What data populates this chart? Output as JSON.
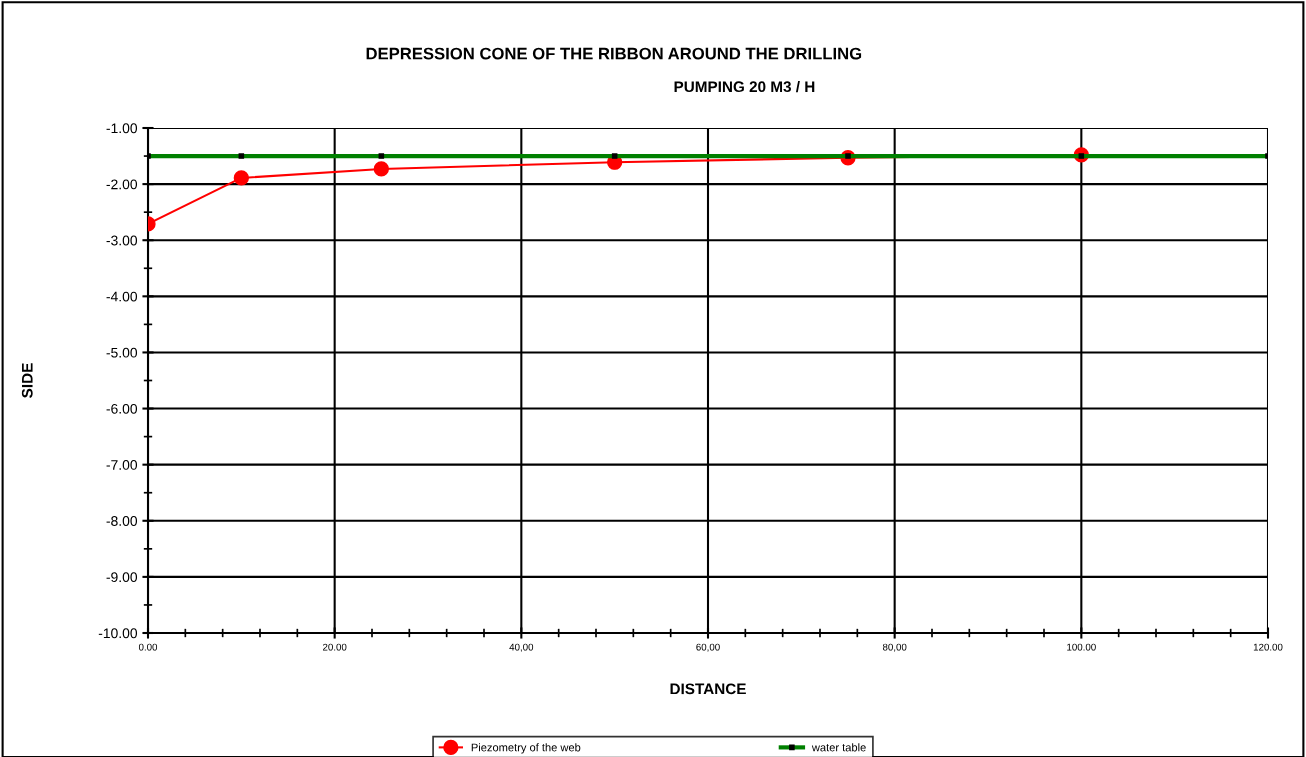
{
  "chart_data": {
    "type": "line",
    "title": "DEPRESSION CONE OF THE RIBBON AROUND THE DRILLING",
    "subtitle": "PUMPING 20 M3 / H",
    "xlabel": "DISTANCE",
    "ylabel": "SIDE",
    "series": [
      {
        "name": "Piezometry of the web",
        "color": "#ff0000",
        "marker": "circle",
        "x": [
          0,
          10,
          25,
          50,
          75,
          100
        ],
        "values": [
          -2.71,
          -1.89,
          -1.73,
          -1.61,
          -1.53,
          -1.48
        ]
      },
      {
        "name": "water table",
        "color": "#008000",
        "marker": "square",
        "x": [
          0,
          10,
          25,
          50,
          75,
          100,
          120
        ],
        "values": [
          -1.5,
          -1.5,
          -1.5,
          -1.5,
          -1.5,
          -1.5,
          -1.5
        ]
      }
    ],
    "xlim": [
      0,
      120
    ],
    "ylim": [
      -10,
      -1
    ],
    "xticks": [
      {
        "value": 0,
        "label": "0.00"
      },
      {
        "value": 20,
        "label": "20.00"
      },
      {
        "value": 40,
        "label": "40,00"
      },
      {
        "value": 60,
        "label": "60,00"
      },
      {
        "value": 80,
        "label": "80,00"
      },
      {
        "value": 100,
        "label": "100.00"
      },
      {
        "value": 120,
        "label": "120.00"
      }
    ],
    "yticks": [
      {
        "value": -10,
        "label": "-10.00"
      },
      {
        "value": -9,
        "label": "-9.00"
      },
      {
        "value": -8,
        "label": "-8.00"
      },
      {
        "value": -7,
        "label": "-7.00"
      },
      {
        "value": -6,
        "label": "-6.00"
      },
      {
        "value": -5,
        "label": "-5.00"
      },
      {
        "value": -4,
        "label": "-4.00"
      },
      {
        "value": -3,
        "label": "-3.00"
      },
      {
        "value": -2,
        "label": "-2.00"
      },
      {
        "value": -1,
        "label": "-1.00"
      }
    ],
    "grid": true,
    "legend": "bottom",
    "line_style": "solid"
  }
}
